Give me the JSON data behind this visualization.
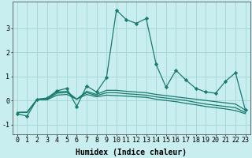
{
  "bg_color": "#c8eef0",
  "grid_color": "#a8d8d8",
  "line_color": "#1a7a6e",
  "xlabel": "Humidex (Indice chaleur)",
  "xlabel_fontsize": 7,
  "tick_fontsize": 6,
  "ylim": [
    -1.4,
    4.1
  ],
  "xlim": [
    -0.5,
    23.5
  ],
  "yticks": [
    -1,
    0,
    1,
    2,
    3
  ],
  "xticks": [
    0,
    1,
    2,
    3,
    4,
    5,
    6,
    7,
    8,
    9,
    10,
    11,
    12,
    13,
    14,
    15,
    16,
    17,
    18,
    19,
    20,
    21,
    22,
    23
  ],
  "series1_x": [
    0,
    1,
    2,
    3,
    4,
    5,
    6,
    7,
    8,
    9,
    10,
    11,
    12,
    13,
    14,
    15,
    16,
    17,
    18,
    19,
    20,
    21,
    22,
    23
  ],
  "series1_y": [
    -0.55,
    -0.65,
    0.05,
    0.1,
    0.4,
    0.5,
    -0.25,
    0.6,
    0.35,
    0.95,
    3.75,
    3.35,
    3.2,
    3.4,
    1.5,
    0.55,
    1.25,
    0.85,
    0.5,
    0.35,
    0.3,
    0.8,
    1.15,
    -0.4
  ],
  "series2_x": [
    0,
    1,
    2,
    3,
    4,
    5,
    6,
    7,
    8,
    9,
    10,
    11,
    12,
    13,
    14,
    15,
    16,
    17,
    18,
    19,
    20,
    21,
    22,
    23
  ],
  "series2_y": [
    -0.5,
    -0.5,
    0.05,
    0.07,
    0.35,
    0.38,
    0.05,
    0.38,
    0.25,
    0.42,
    0.42,
    0.38,
    0.35,
    0.32,
    0.25,
    0.2,
    0.15,
    0.1,
    0.05,
    0.0,
    -0.05,
    -0.1,
    -0.15,
    -0.4
  ],
  "series3_x": [
    0,
    1,
    2,
    3,
    4,
    5,
    6,
    7,
    8,
    9,
    10,
    11,
    12,
    13,
    14,
    15,
    16,
    17,
    18,
    19,
    20,
    21,
    22,
    23
  ],
  "series3_y": [
    -0.5,
    -0.5,
    0.05,
    0.05,
    0.3,
    0.33,
    0.05,
    0.33,
    0.2,
    0.32,
    0.32,
    0.28,
    0.25,
    0.22,
    0.15,
    0.1,
    0.05,
    0.0,
    -0.08,
    -0.15,
    -0.2,
    -0.25,
    -0.3,
    -0.5
  ],
  "series4_x": [
    0,
    1,
    2,
    3,
    4,
    5,
    6,
    7,
    8,
    9,
    10,
    11,
    12,
    13,
    14,
    15,
    16,
    17,
    18,
    19,
    20,
    21,
    22,
    23
  ],
  "series4_y": [
    -0.5,
    -0.48,
    0.03,
    0.03,
    0.22,
    0.25,
    0.05,
    0.25,
    0.15,
    0.22,
    0.2,
    0.18,
    0.15,
    0.13,
    0.05,
    0.0,
    -0.05,
    -0.12,
    -0.18,
    -0.25,
    -0.3,
    -0.35,
    -0.42,
    -0.55
  ]
}
